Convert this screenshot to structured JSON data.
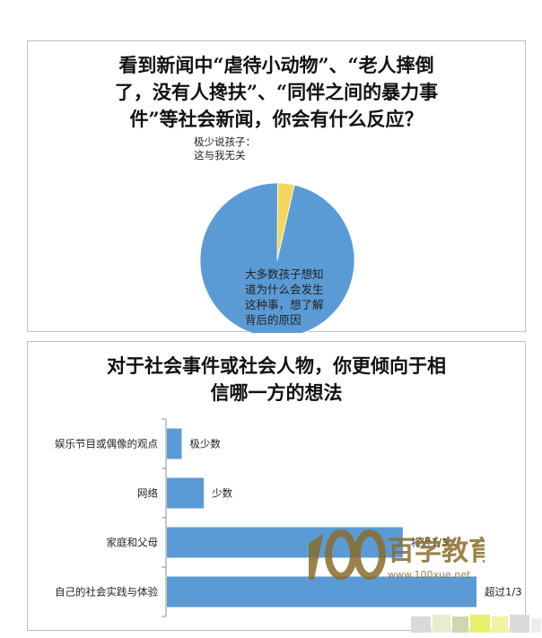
{
  "chart_data": [
    {
      "type": "pie",
      "title_lines": [
        "看到新闻中“虐待小动物”、“老人摔倒",
        "了，没有人搀扶”、“同伴之间的暴力事",
        "件”等社会新闻，你会有什么反应？"
      ],
      "slices": [
        {
          "label": "大多数孩子想知道为什么会发生这种事，想了解背后的原因",
          "label_lines": [
            "大多数孩子想知",
            "道为什么会发生",
            "这种事，想了解",
            "背后的原因"
          ],
          "value": 96.5,
          "color": "#5b9bd5"
        },
        {
          "label": "极少说孩子：这与我无关",
          "label_lines": [
            "极少说孩子：",
            "这与我无关"
          ],
          "value": 3.5,
          "color": "#f4d65a"
        }
      ]
    },
    {
      "type": "bar",
      "orientation": "horizontal",
      "title_lines": [
        "对于社会事件或社会人物，你更倾向于相",
        "信哪一方的想法"
      ],
      "categories": [
        "娱乐节目或偶像的观点",
        "网络",
        "家庭和父母",
        "自己的社会实践与体验"
      ],
      "values": [
        2,
        5,
        32,
        42
      ],
      "data_labels": [
        "极少数",
        "少数",
        "将近1/3",
        "超过1/3"
      ],
      "xlim": [
        0,
        42
      ],
      "color": "#5b9bd5",
      "grid": false
    }
  ],
  "watermark": {
    "logo": "100",
    "brand": "百学教育",
    "url": "www.100xue.net",
    "accent": "#8a6d2b"
  }
}
